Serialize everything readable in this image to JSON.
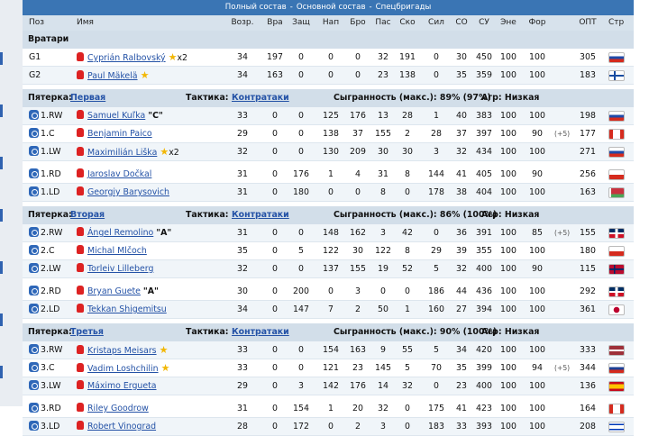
{
  "top": {
    "title": "Полный состав",
    "sep": "-",
    "main": "Основной состав",
    "special": "Спецбригады"
  },
  "columns": [
    "Поз",
    "Имя",
    "Возр.",
    "Вра",
    "Защ",
    "Нап",
    "Бро",
    "Пас",
    "Ско",
    "Сил",
    "СО",
    "СУ",
    "Эне",
    "Фор",
    "ОПТ",
    "Стр"
  ],
  "goalies": {
    "label": "Вратари",
    "rows": [
      {
        "pos": "G1",
        "name": "Cyprián Ralbovský",
        "star": true,
        "extra": "x2",
        "age": "34",
        "vra": "197",
        "zash": "0",
        "nap": "0",
        "bro": "0",
        "pas": "32",
        "sko": "191",
        "sil": "0",
        "so": "30",
        "su": "450",
        "ene": "100",
        "for": "100",
        "opt": "305",
        "flag": "svk"
      },
      {
        "pos": "G2",
        "name": "Paul Mäkelä",
        "star": true,
        "extra": "",
        "age": "34",
        "vra": "163",
        "zash": "0",
        "nap": "0",
        "bro": "0",
        "pas": "23",
        "sko": "138",
        "sil": "0",
        "so": "35",
        "su": "359",
        "ene": "100",
        "for": "100",
        "opt": "183",
        "flag": "fin"
      }
    ]
  },
  "lines": [
    {
      "label": "Пятерка:",
      "name": "Первая",
      "tactic_label": "Тактика:",
      "tactic": "Контратаки",
      "chem": "Сыгранность (макс.): 89% (97%)",
      "agr": "Агр: Низкая",
      "rows": [
        {
          "pos": "1.RW",
          "name": "Samuel Kuľka",
          "cap": "\"C\"",
          "star": false,
          "extra": "",
          "age": "33",
          "vra": "0",
          "zash": "0",
          "nap": "125",
          "bro": "176",
          "pas": "13",
          "sko": "28",
          "sil": "1",
          "so": "40",
          "su": "383",
          "ene": "100",
          "for": "100",
          "bonus": "",
          "opt": "198",
          "flag": "svk"
        },
        {
          "pos": "1.C",
          "name": "Benjamin Paico",
          "cap": "",
          "star": false,
          "extra": "",
          "age": "29",
          "vra": "0",
          "zash": "0",
          "nap": "138",
          "bro": "37",
          "pas": "155",
          "sko": "2",
          "sil": "28",
          "so": "37",
          "su": "397",
          "ene": "100",
          "for": "90",
          "bonus": "(+5)",
          "opt": "177",
          "flag": "can"
        },
        {
          "pos": "1.LW",
          "name": "Maximilián Liška",
          "cap": "",
          "star": true,
          "extra": "x2",
          "age": "32",
          "vra": "0",
          "zash": "0",
          "nap": "130",
          "bro": "209",
          "pas": "30",
          "sko": "30",
          "sil": "3",
          "so": "32",
          "su": "434",
          "ene": "100",
          "for": "100",
          "bonus": "",
          "opt": "271",
          "flag": "svk"
        },
        {
          "pos": "1.RD",
          "name": "Jaroslav Dočkal",
          "cap": "",
          "star": false,
          "extra": "",
          "age": "31",
          "vra": "0",
          "zash": "176",
          "nap": "1",
          "bro": "4",
          "pas": "31",
          "sko": "8",
          "sil": "144",
          "so": "41",
          "su": "405",
          "ene": "100",
          "for": "90",
          "bonus": "",
          "opt": "256",
          "flag": "cze"
        },
        {
          "pos": "1.LD",
          "name": "Georgiy Barysovich",
          "cap": "",
          "star": false,
          "extra": "",
          "age": "31",
          "vra": "0",
          "zash": "180",
          "nap": "0",
          "bro": "0",
          "pas": "8",
          "sko": "0",
          "sil": "178",
          "so": "38",
          "su": "404",
          "ene": "100",
          "for": "100",
          "bonus": "",
          "opt": "163",
          "flag": "blr"
        }
      ]
    },
    {
      "label": "Пятерка:",
      "name": "Вторая",
      "tactic_label": "Тактика:",
      "tactic": "Контратаки",
      "chem": "Сыгранность (макс.): 86% (100%)",
      "agr": "Агр: Низкая",
      "rows": [
        {
          "pos": "2.RW",
          "name": "Ángel Remolino",
          "cap": "\"A\"",
          "star": false,
          "extra": "",
          "age": "31",
          "vra": "0",
          "zash": "0",
          "nap": "148",
          "bro": "162",
          "pas": "3",
          "sko": "42",
          "sil": "0",
          "so": "36",
          "su": "391",
          "ene": "100",
          "for": "85",
          "bonus": "(+5)",
          "opt": "155",
          "flag": "dom"
        },
        {
          "pos": "2.C",
          "name": "Michal Mlčoch",
          "cap": "",
          "star": false,
          "extra": "",
          "age": "35",
          "vra": "0",
          "zash": "5",
          "nap": "122",
          "bro": "30",
          "pas": "122",
          "sko": "8",
          "sil": "29",
          "so": "39",
          "su": "355",
          "ene": "100",
          "for": "100",
          "bonus": "",
          "opt": "180",
          "flag": "cze"
        },
        {
          "pos": "2.LW",
          "name": "Torleiv Lilleberg",
          "cap": "",
          "star": false,
          "extra": "",
          "age": "32",
          "vra": "0",
          "zash": "0",
          "nap": "137",
          "bro": "155",
          "pas": "19",
          "sko": "52",
          "sil": "5",
          "so": "32",
          "su": "400",
          "ene": "100",
          "for": "90",
          "bonus": "",
          "opt": "115",
          "flag": "nor"
        },
        {
          "pos": "2.RD",
          "name": "Bryan Guete",
          "cap": "\"A\"",
          "star": false,
          "extra": "",
          "age": "30",
          "vra": "0",
          "zash": "200",
          "nap": "0",
          "bro": "3",
          "pas": "0",
          "sko": "0",
          "sil": "186",
          "so": "44",
          "su": "436",
          "ene": "100",
          "for": "100",
          "bonus": "",
          "opt": "292",
          "flag": "dom"
        },
        {
          "pos": "2.LD",
          "name": "Tekkan Shigemitsu",
          "cap": "",
          "star": false,
          "extra": "",
          "age": "34",
          "vra": "0",
          "zash": "147",
          "nap": "7",
          "bro": "2",
          "pas": "50",
          "sko": "1",
          "sil": "160",
          "so": "27",
          "su": "394",
          "ene": "100",
          "for": "100",
          "bonus": "",
          "opt": "361",
          "flag": "jpn"
        }
      ]
    },
    {
      "label": "Пятерка:",
      "name": "Третья",
      "tactic_label": "Тактика:",
      "tactic": "Контратаки",
      "chem": "Сыгранность (макс.): 90% (100%)",
      "agr": "Агр: Низкая",
      "rows": [
        {
          "pos": "3.RW",
          "name": "Kristaps Meisars",
          "cap": "",
          "star": true,
          "extra": "",
          "age": "33",
          "vra": "0",
          "zash": "0",
          "nap": "154",
          "bro": "163",
          "pas": "9",
          "sko": "55",
          "sil": "5",
          "so": "34",
          "su": "420",
          "ene": "100",
          "for": "100",
          "bonus": "",
          "opt": "333",
          "flag": "lva"
        },
        {
          "pos": "3.C",
          "name": "Vadim Loshchilin",
          "cap": "",
          "star": true,
          "extra": "",
          "age": "33",
          "vra": "0",
          "zash": "0",
          "nap": "121",
          "bro": "23",
          "pas": "145",
          "sko": "5",
          "sil": "70",
          "so": "35",
          "su": "399",
          "ene": "100",
          "for": "94",
          "bonus": "(+5)",
          "opt": "344",
          "flag": "rus"
        },
        {
          "pos": "3.LW",
          "name": "Máximo Ergueta",
          "cap": "",
          "star": false,
          "extra": "",
          "age": "29",
          "vra": "0",
          "zash": "3",
          "nap": "142",
          "bro": "176",
          "pas": "14",
          "sko": "32",
          "sil": "0",
          "so": "23",
          "su": "400",
          "ene": "100",
          "for": "100",
          "bonus": "",
          "opt": "136",
          "flag": "esp"
        },
        {
          "pos": "3.RD",
          "name": "Riley Goodrow",
          "cap": "",
          "star": false,
          "extra": "",
          "age": "31",
          "vra": "0",
          "zash": "154",
          "nap": "1",
          "bro": "20",
          "pas": "32",
          "sko": "0",
          "sil": "175",
          "so": "41",
          "su": "423",
          "ene": "100",
          "for": "100",
          "bonus": "",
          "opt": "164",
          "flag": "can"
        },
        {
          "pos": "3.LD",
          "name": "Robert Vinograd",
          "cap": "",
          "star": false,
          "extra": "",
          "age": "28",
          "vra": "0",
          "zash": "172",
          "nap": "0",
          "bro": "2",
          "pas": "3",
          "sko": "0",
          "sil": "183",
          "so": "33",
          "su": "393",
          "ene": "100",
          "for": "100",
          "bonus": "",
          "opt": "208",
          "flag": "isr"
        }
      ]
    }
  ]
}
